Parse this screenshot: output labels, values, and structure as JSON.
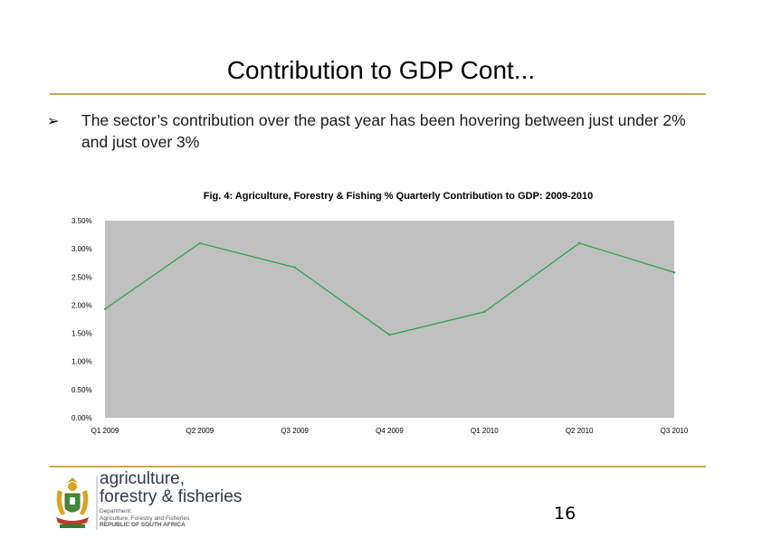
{
  "slide": {
    "title": "Contribution to GDP Cont...",
    "bullet_marker": "➢",
    "bullet_text": "The sector’s contribution over the past year has been hovering between just under 2% and just over 3%",
    "page_number": "16"
  },
  "footer": {
    "brand_line1": "agriculture,",
    "brand_line2": "forestry & fisheries",
    "dept_line1": "Department:",
    "dept_line2": "Agriculture, Forestry and Fisheries",
    "dept_line3": "REPUBLIC OF SOUTH AFRICA"
  },
  "colors": {
    "accent_rule": "#c8a85a",
    "plot_background": "#c0c0c0",
    "series_line": "#2ea34a",
    "brand_text": "#2e3a4d"
  },
  "chart_data": {
    "type": "line",
    "title": "Fig. 4: Agriculture, Forestry & Fishing % Quarterly Contribution to GDP: 2009-2010",
    "categories": [
      "Q1 2009",
      "Q2 2009",
      "Q3 2009",
      "Q4 2009",
      "Q1 2010",
      "Q2 2010",
      "Q3 2010"
    ],
    "series": [
      {
        "name": "Contribution to GDP",
        "values": [
          1.93,
          3.1,
          2.67,
          1.47,
          1.88,
          3.1,
          2.58
        ]
      }
    ],
    "ylim": [
      0,
      3.5
    ],
    "yticks": [
      "0.00%",
      "0.50%",
      "1.00%",
      "1.50%",
      "2.00%",
      "2.50%",
      "3.00%",
      "3.50%"
    ],
    "ytick_values": [
      0,
      0.5,
      1.0,
      1.5,
      2.0,
      2.5,
      3.0,
      3.5
    ],
    "xlabel": "",
    "ylabel": "",
    "grid": false,
    "legend": "none"
  }
}
